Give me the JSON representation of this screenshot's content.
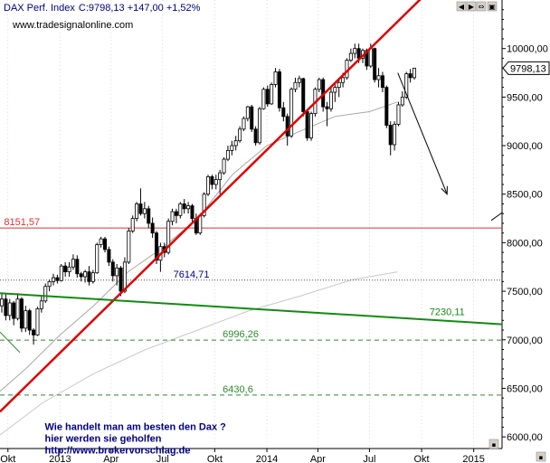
{
  "window": {
    "symbol_label": "DAX Perf. Index",
    "quote_label": "C:9798,13 +147,00 +1,52%",
    "watermark": "www.tradesignalonline.com",
    "buttons": [
      "◀",
      "▶",
      "⇔",
      "▣"
    ],
    "menu_glyph": "▪"
  },
  "chart_data": {
    "type": "candlestick",
    "title": "DAX Perf. Index",
    "last_value": 9798.13,
    "last_value_label": "9798,13",
    "ylim": [
      5880,
      10500
    ],
    "x_range": [
      "2012-09-17",
      "2015-02-20"
    ],
    "yticks": [
      {
        "v": 6000,
        "label": "6000,00"
      },
      {
        "v": 6500,
        "label": "6500,00"
      },
      {
        "v": 7000,
        "label": "7000,00"
      },
      {
        "v": 7500,
        "label": "7500,00"
      },
      {
        "v": 8000,
        "label": "8000,00"
      },
      {
        "v": 8500,
        "label": "8500,00"
      },
      {
        "v": 9000,
        "label": "9000,00"
      },
      {
        "v": 9500,
        "label": "9500,00"
      },
      {
        "v": 10000,
        "label": "10000,00"
      }
    ],
    "xticks": [
      {
        "d": "2012-10-01",
        "label": "Okt"
      },
      {
        "d": "2013-01-01",
        "label": "2013"
      },
      {
        "d": "2013-04-01",
        "label": "Apr"
      },
      {
        "d": "2013-07-01",
        "label": "Jul"
      },
      {
        "d": "2013-10-01",
        "label": "Okt"
      },
      {
        "d": "2014-01-01",
        "label": "2014"
      },
      {
        "d": "2014-04-01",
        "label": "Apr"
      },
      {
        "d": "2014-07-01",
        "label": "Jul"
      },
      {
        "d": "2014-10-01",
        "label": "Okt"
      },
      {
        "d": "2015-01-01",
        "label": "2015"
      }
    ],
    "hlines": [
      {
        "v": 8151.57,
        "label": "8151,57",
        "color": "#e03030",
        "style": "solid",
        "label_date": "2012-09-24"
      },
      {
        "v": 7614.71,
        "label": "7614,71",
        "color": "#505050",
        "style": "dotted",
        "label_date": "2013-07-20"
      },
      {
        "v": 6996.26,
        "label": "6996,26",
        "color": "#2a8a2a",
        "style": "dashed",
        "label_date": "2013-10-15"
      },
      {
        "v": 6430.6,
        "label": "6430,6",
        "color": "#2a8a2a",
        "style": "dashed",
        "label_date": "2013-10-15"
      }
    ],
    "trendlines": [
      {
        "name": "",
        "color": "#e00000",
        "width": 2.5,
        "from": {
          "d": "2012-09-17",
          "v": 6260
        },
        "to": {
          "d": "2014-10-01",
          "v": 10520
        }
      },
      {
        "name": "",
        "color": "#138a13",
        "width": 2,
        "from": {
          "d": "2012-09-17",
          "v": 7480
        },
        "to": {
          "d": "2015-02-20",
          "v": 7160
        },
        "label": "7230,11",
        "label_date": "2014-10-15"
      }
    ],
    "moving_averages": [
      {
        "color": "#a8a8a8",
        "points": [
          [
            "2012-09-17",
            6470
          ],
          [
            "2012-11-01",
            6700
          ],
          [
            "2013-01-01",
            7050
          ],
          [
            "2013-03-01",
            7350
          ],
          [
            "2013-05-01",
            7700
          ],
          [
            "2013-07-01",
            7950
          ],
          [
            "2013-09-01",
            8250
          ],
          [
            "2013-11-01",
            8700
          ],
          [
            "2014-01-01",
            9000
          ],
          [
            "2014-03-01",
            9150
          ],
          [
            "2014-05-01",
            9300
          ],
          [
            "2014-07-01",
            9350
          ],
          [
            "2014-08-20",
            9450
          ]
        ]
      },
      {
        "color": "#c8c8c8",
        "points": [
          [
            "2012-09-17",
            6020
          ],
          [
            "2012-12-01",
            6350
          ],
          [
            "2013-03-01",
            6650
          ],
          [
            "2013-06-01",
            6900
          ],
          [
            "2013-09-01",
            7100
          ],
          [
            "2013-12-01",
            7300
          ],
          [
            "2014-03-01",
            7450
          ],
          [
            "2014-06-01",
            7620
          ],
          [
            "2014-08-20",
            7700
          ]
        ]
      }
    ],
    "green_segment": {
      "color": "#2a8a2a",
      "from": {
        "d": "2012-09-17",
        "v": 7080
      },
      "to": {
        "d": "2012-10-22",
        "v": 6870
      }
    },
    "arrows": [
      {
        "color": "#000000",
        "from": {
          "d": "2014-08-20",
          "v": 9750
        },
        "to": {
          "d": "2014-11-15",
          "v": 8500
        }
      },
      {
        "color": "#000000",
        "from": {
          "d": "2015-02-01",
          "v": 8230
        },
        "to": {
          "d": "2015-02-20",
          "v": 8310
        }
      }
    ],
    "annotation": [
      "Wie handelt man am besten  den Dax ?",
      "hier werden sie geholfen",
      "http://www.brokervorschlag.de"
    ],
    "annotation_date": "2012-12-05",
    "candles": [
      {
        "d": "2012-09-17",
        "o": 7350,
        "h": 7480,
        "l": 7280,
        "c": 7420
      },
      {
        "d": "2012-09-24",
        "o": 7420,
        "h": 7470,
        "l": 7200,
        "c": 7250
      },
      {
        "d": "2012-10-01",
        "o": 7250,
        "h": 7420,
        "l": 7200,
        "c": 7380
      },
      {
        "d": "2012-10-08",
        "o": 7380,
        "h": 7400,
        "l": 7150,
        "c": 7220
      },
      {
        "d": "2012-10-15",
        "o": 7220,
        "h": 7480,
        "l": 7200,
        "c": 7420
      },
      {
        "d": "2012-10-22",
        "o": 7420,
        "h": 7440,
        "l": 7080,
        "c": 7120
      },
      {
        "d": "2012-10-29",
        "o": 7120,
        "h": 7350,
        "l": 7080,
        "c": 7300
      },
      {
        "d": "2012-11-05",
        "o": 7300,
        "h": 7320,
        "l": 7050,
        "c": 7100
      },
      {
        "d": "2012-11-12",
        "o": 7100,
        "h": 7120,
        "l": 6950,
        "c": 7050
      },
      {
        "d": "2012-11-19",
        "o": 7050,
        "h": 7340,
        "l": 7040,
        "c": 7320
      },
      {
        "d": "2012-11-26",
        "o": 7320,
        "h": 7450,
        "l": 7280,
        "c": 7400
      },
      {
        "d": "2012-12-03",
        "o": 7400,
        "h": 7580,
        "l": 7380,
        "c": 7550
      },
      {
        "d": "2012-12-10",
        "o": 7550,
        "h": 7620,
        "l": 7500,
        "c": 7600
      },
      {
        "d": "2012-12-17",
        "o": 7600,
        "h": 7680,
        "l": 7560,
        "c": 7640
      },
      {
        "d": "2012-12-24",
        "o": 7640,
        "h": 7670,
        "l": 7580,
        "c": 7610
      },
      {
        "d": "2012-12-31",
        "o": 7610,
        "h": 7780,
        "l": 7600,
        "c": 7760
      },
      {
        "d": "2013-01-07",
        "o": 7760,
        "h": 7800,
        "l": 7650,
        "c": 7700
      },
      {
        "d": "2013-01-14",
        "o": 7700,
        "h": 7800,
        "l": 7650,
        "c": 7750
      },
      {
        "d": "2013-01-21",
        "o": 7750,
        "h": 7880,
        "l": 7720,
        "c": 7830
      },
      {
        "d": "2013-01-28",
        "o": 7830,
        "h": 7870,
        "l": 7640,
        "c": 7680
      },
      {
        "d": "2013-02-04",
        "o": 7680,
        "h": 7700,
        "l": 7600,
        "c": 7650
      },
      {
        "d": "2013-02-11",
        "o": 7650,
        "h": 7720,
        "l": 7590,
        "c": 7700
      },
      {
        "d": "2013-02-18",
        "o": 7700,
        "h": 7760,
        "l": 7560,
        "c": 7600
      },
      {
        "d": "2013-02-25",
        "o": 7600,
        "h": 7720,
        "l": 7580,
        "c": 7690
      },
      {
        "d": "2013-03-04",
        "o": 7690,
        "h": 8000,
        "l": 7680,
        "c": 7980
      },
      {
        "d": "2013-03-11",
        "o": 7980,
        "h": 8060,
        "l": 7950,
        "c": 8040
      },
      {
        "d": "2013-03-18",
        "o": 8040,
        "h": 8060,
        "l": 7900,
        "c": 7930
      },
      {
        "d": "2013-03-25",
        "o": 7930,
        "h": 7960,
        "l": 7760,
        "c": 7800
      },
      {
        "d": "2013-04-01",
        "o": 7800,
        "h": 7830,
        "l": 7600,
        "c": 7660
      },
      {
        "d": "2013-04-08",
        "o": 7660,
        "h": 7780,
        "l": 7560,
        "c": 7740
      },
      {
        "d": "2013-04-15",
        "o": 7740,
        "h": 7760,
        "l": 7450,
        "c": 7500
      },
      {
        "d": "2013-04-22",
        "o": 7500,
        "h": 7850,
        "l": 7480,
        "c": 7800
      },
      {
        "d": "2013-04-29",
        "o": 7800,
        "h": 8150,
        "l": 7780,
        "c": 8120
      },
      {
        "d": "2013-05-06",
        "o": 8120,
        "h": 8280,
        "l": 8100,
        "c": 8250
      },
      {
        "d": "2013-05-13",
        "o": 8250,
        "h": 8420,
        "l": 8220,
        "c": 8400
      },
      {
        "d": "2013-05-20",
        "o": 8400,
        "h": 8560,
        "l": 8280,
        "c": 8300
      },
      {
        "d": "2013-05-27",
        "o": 8300,
        "h": 8420,
        "l": 8250,
        "c": 8350
      },
      {
        "d": "2013-06-03",
        "o": 8350,
        "h": 8380,
        "l": 8150,
        "c": 8200
      },
      {
        "d": "2013-06-10",
        "o": 8200,
        "h": 8260,
        "l": 8050,
        "c": 8100
      },
      {
        "d": "2013-06-17",
        "o": 8100,
        "h": 8120,
        "l": 7780,
        "c": 7820
      },
      {
        "d": "2013-06-24",
        "o": 7820,
        "h": 8000,
        "l": 7700,
        "c": 7960
      },
      {
        "d": "2013-07-01",
        "o": 7960,
        "h": 8000,
        "l": 7850,
        "c": 7900
      },
      {
        "d": "2013-07-08",
        "o": 7900,
        "h": 8250,
        "l": 7880,
        "c": 8220
      },
      {
        "d": "2013-07-15",
        "o": 8220,
        "h": 8350,
        "l": 8180,
        "c": 8320
      },
      {
        "d": "2013-07-22",
        "o": 8320,
        "h": 8350,
        "l": 8200,
        "c": 8280
      },
      {
        "d": "2013-07-29",
        "o": 8280,
        "h": 8420,
        "l": 8250,
        "c": 8400
      },
      {
        "d": "2013-08-05",
        "o": 8400,
        "h": 8450,
        "l": 8300,
        "c": 8350
      },
      {
        "d": "2013-08-12",
        "o": 8350,
        "h": 8420,
        "l": 8300,
        "c": 8380
      },
      {
        "d": "2013-08-19",
        "o": 8380,
        "h": 8400,
        "l": 8200,
        "c": 8250
      },
      {
        "d": "2013-08-26",
        "o": 8250,
        "h": 8300,
        "l": 8080,
        "c": 8100
      },
      {
        "d": "2013-09-02",
        "o": 8100,
        "h": 8300,
        "l": 8080,
        "c": 8280
      },
      {
        "d": "2013-09-09",
        "o": 8280,
        "h": 8520,
        "l": 8260,
        "c": 8500
      },
      {
        "d": "2013-09-16",
        "o": 8500,
        "h": 8700,
        "l": 8480,
        "c": 8680
      },
      {
        "d": "2013-09-23",
        "o": 8680,
        "h": 8700,
        "l": 8550,
        "c": 8600
      },
      {
        "d": "2013-09-30",
        "o": 8600,
        "h": 8700,
        "l": 8550,
        "c": 8650
      },
      {
        "d": "2013-10-07",
        "o": 8650,
        "h": 8750,
        "l": 8500,
        "c": 8720
      },
      {
        "d": "2013-10-14",
        "o": 8720,
        "h": 8880,
        "l": 8700,
        "c": 8860
      },
      {
        "d": "2013-10-21",
        "o": 8860,
        "h": 9000,
        "l": 8840,
        "c": 8950
      },
      {
        "d": "2013-10-28",
        "o": 8950,
        "h": 9050,
        "l": 8900,
        "c": 9000
      },
      {
        "d": "2013-11-04",
        "o": 9000,
        "h": 9100,
        "l": 8950,
        "c": 9050
      },
      {
        "d": "2013-11-11",
        "o": 9050,
        "h": 9200,
        "l": 9030,
        "c": 9170
      },
      {
        "d": "2013-11-18",
        "o": 9170,
        "h": 9300,
        "l": 9150,
        "c": 9280
      },
      {
        "d": "2013-11-25",
        "o": 9280,
        "h": 9410,
        "l": 9250,
        "c": 9400
      },
      {
        "d": "2013-12-02",
        "o": 9400,
        "h": 9420,
        "l": 9140,
        "c": 9170
      },
      {
        "d": "2013-12-09",
        "o": 9170,
        "h": 9200,
        "l": 9000,
        "c": 9030
      },
      {
        "d": "2013-12-16",
        "o": 9030,
        "h": 9400,
        "l": 9010,
        "c": 9380
      },
      {
        "d": "2013-12-23",
        "o": 9380,
        "h": 9600,
        "l": 9370,
        "c": 9580
      },
      {
        "d": "2013-12-30",
        "o": 9580,
        "h": 9620,
        "l": 9400,
        "c": 9430
      },
      {
        "d": "2014-01-06",
        "o": 9430,
        "h": 9650,
        "l": 9420,
        "c": 9630
      },
      {
        "d": "2014-01-13",
        "o": 9630,
        "h": 9800,
        "l": 9600,
        "c": 9760
      },
      {
        "d": "2014-01-20",
        "o": 9760,
        "h": 9790,
        "l": 9350,
        "c": 9390
      },
      {
        "d": "2014-01-27",
        "o": 9390,
        "h": 9450,
        "l": 9250,
        "c": 9300
      },
      {
        "d": "2014-02-03",
        "o": 9300,
        "h": 9330,
        "l": 9000,
        "c": 9100
      },
      {
        "d": "2014-02-10",
        "o": 9100,
        "h": 9600,
        "l": 9080,
        "c": 9580
      },
      {
        "d": "2014-02-17",
        "o": 9580,
        "h": 9700,
        "l": 9550,
        "c": 9650
      },
      {
        "d": "2014-02-24",
        "o": 9650,
        "h": 9720,
        "l": 9600,
        "c": 9690
      },
      {
        "d": "2014-03-03",
        "o": 9690,
        "h": 9700,
        "l": 9300,
        "c": 9350
      },
      {
        "d": "2014-03-10",
        "o": 9350,
        "h": 9360,
        "l": 9050,
        "c": 9080
      },
      {
        "d": "2014-03-17",
        "o": 9080,
        "h": 9350,
        "l": 9050,
        "c": 9330
      },
      {
        "d": "2014-03-24",
        "o": 9330,
        "h": 9600,
        "l": 9300,
        "c": 9580
      },
      {
        "d": "2014-03-31",
        "o": 9580,
        "h": 9700,
        "l": 9550,
        "c": 9680
      },
      {
        "d": "2014-04-07",
        "o": 9680,
        "h": 9700,
        "l": 9350,
        "c": 9400
      },
      {
        "d": "2014-04-14",
        "o": 9400,
        "h": 9450,
        "l": 9200,
        "c": 9380
      },
      {
        "d": "2014-04-21",
        "o": 9380,
        "h": 9600,
        "l": 9350,
        "c": 9550
      },
      {
        "d": "2014-04-28",
        "o": 9550,
        "h": 9650,
        "l": 9450,
        "c": 9600
      },
      {
        "d": "2014-05-05",
        "o": 9600,
        "h": 9700,
        "l": 9500,
        "c": 9650
      },
      {
        "d": "2014-05-12",
        "o": 9650,
        "h": 9750,
        "l": 9600,
        "c": 9700
      },
      {
        "d": "2014-05-19",
        "o": 9700,
        "h": 9900,
        "l": 9680,
        "c": 9880
      },
      {
        "d": "2014-05-26",
        "o": 9880,
        "h": 10000,
        "l": 9860,
        "c": 9950
      },
      {
        "d": "2014-06-02",
        "o": 9950,
        "h": 10050,
        "l": 9900,
        "c": 10000
      },
      {
        "d": "2014-06-09",
        "o": 10000,
        "h": 10050,
        "l": 9850,
        "c": 9900
      },
      {
        "d": "2014-06-16",
        "o": 9900,
        "h": 10000,
        "l": 9850,
        "c": 9980
      },
      {
        "d": "2014-06-23",
        "o": 9980,
        "h": 10000,
        "l": 9780,
        "c": 9820
      },
      {
        "d": "2014-06-30",
        "o": 9820,
        "h": 10050,
        "l": 9800,
        "c": 10000
      },
      {
        "d": "2014-07-07",
        "o": 10000,
        "h": 10010,
        "l": 9650,
        "c": 9680
      },
      {
        "d": "2014-07-14",
        "o": 9680,
        "h": 9800,
        "l": 9600,
        "c": 9720
      },
      {
        "d": "2014-07-21",
        "o": 9720,
        "h": 9760,
        "l": 9550,
        "c": 9600
      },
      {
        "d": "2014-07-28",
        "o": 9600,
        "h": 9620,
        "l": 9180,
        "c": 9210
      },
      {
        "d": "2014-08-04",
        "o": 9210,
        "h": 9250,
        "l": 8900,
        "c": 9010
      },
      {
        "d": "2014-08-11",
        "o": 9010,
        "h": 9250,
        "l": 8950,
        "c": 9220
      },
      {
        "d": "2014-08-18",
        "o": 9220,
        "h": 9450,
        "l": 9200,
        "c": 9420
      },
      {
        "d": "2014-08-25",
        "o": 9420,
        "h": 9560,
        "l": 9400,
        "c": 9500
      },
      {
        "d": "2014-09-01",
        "o": 9500,
        "h": 9760,
        "l": 9480,
        "c": 9740
      },
      {
        "d": "2014-09-08",
        "o": 9740,
        "h": 9790,
        "l": 9650,
        "c": 9700
      },
      {
        "d": "2014-09-15",
        "o": 9700,
        "h": 9800,
        "l": 9680,
        "c": 9798
      }
    ]
  }
}
